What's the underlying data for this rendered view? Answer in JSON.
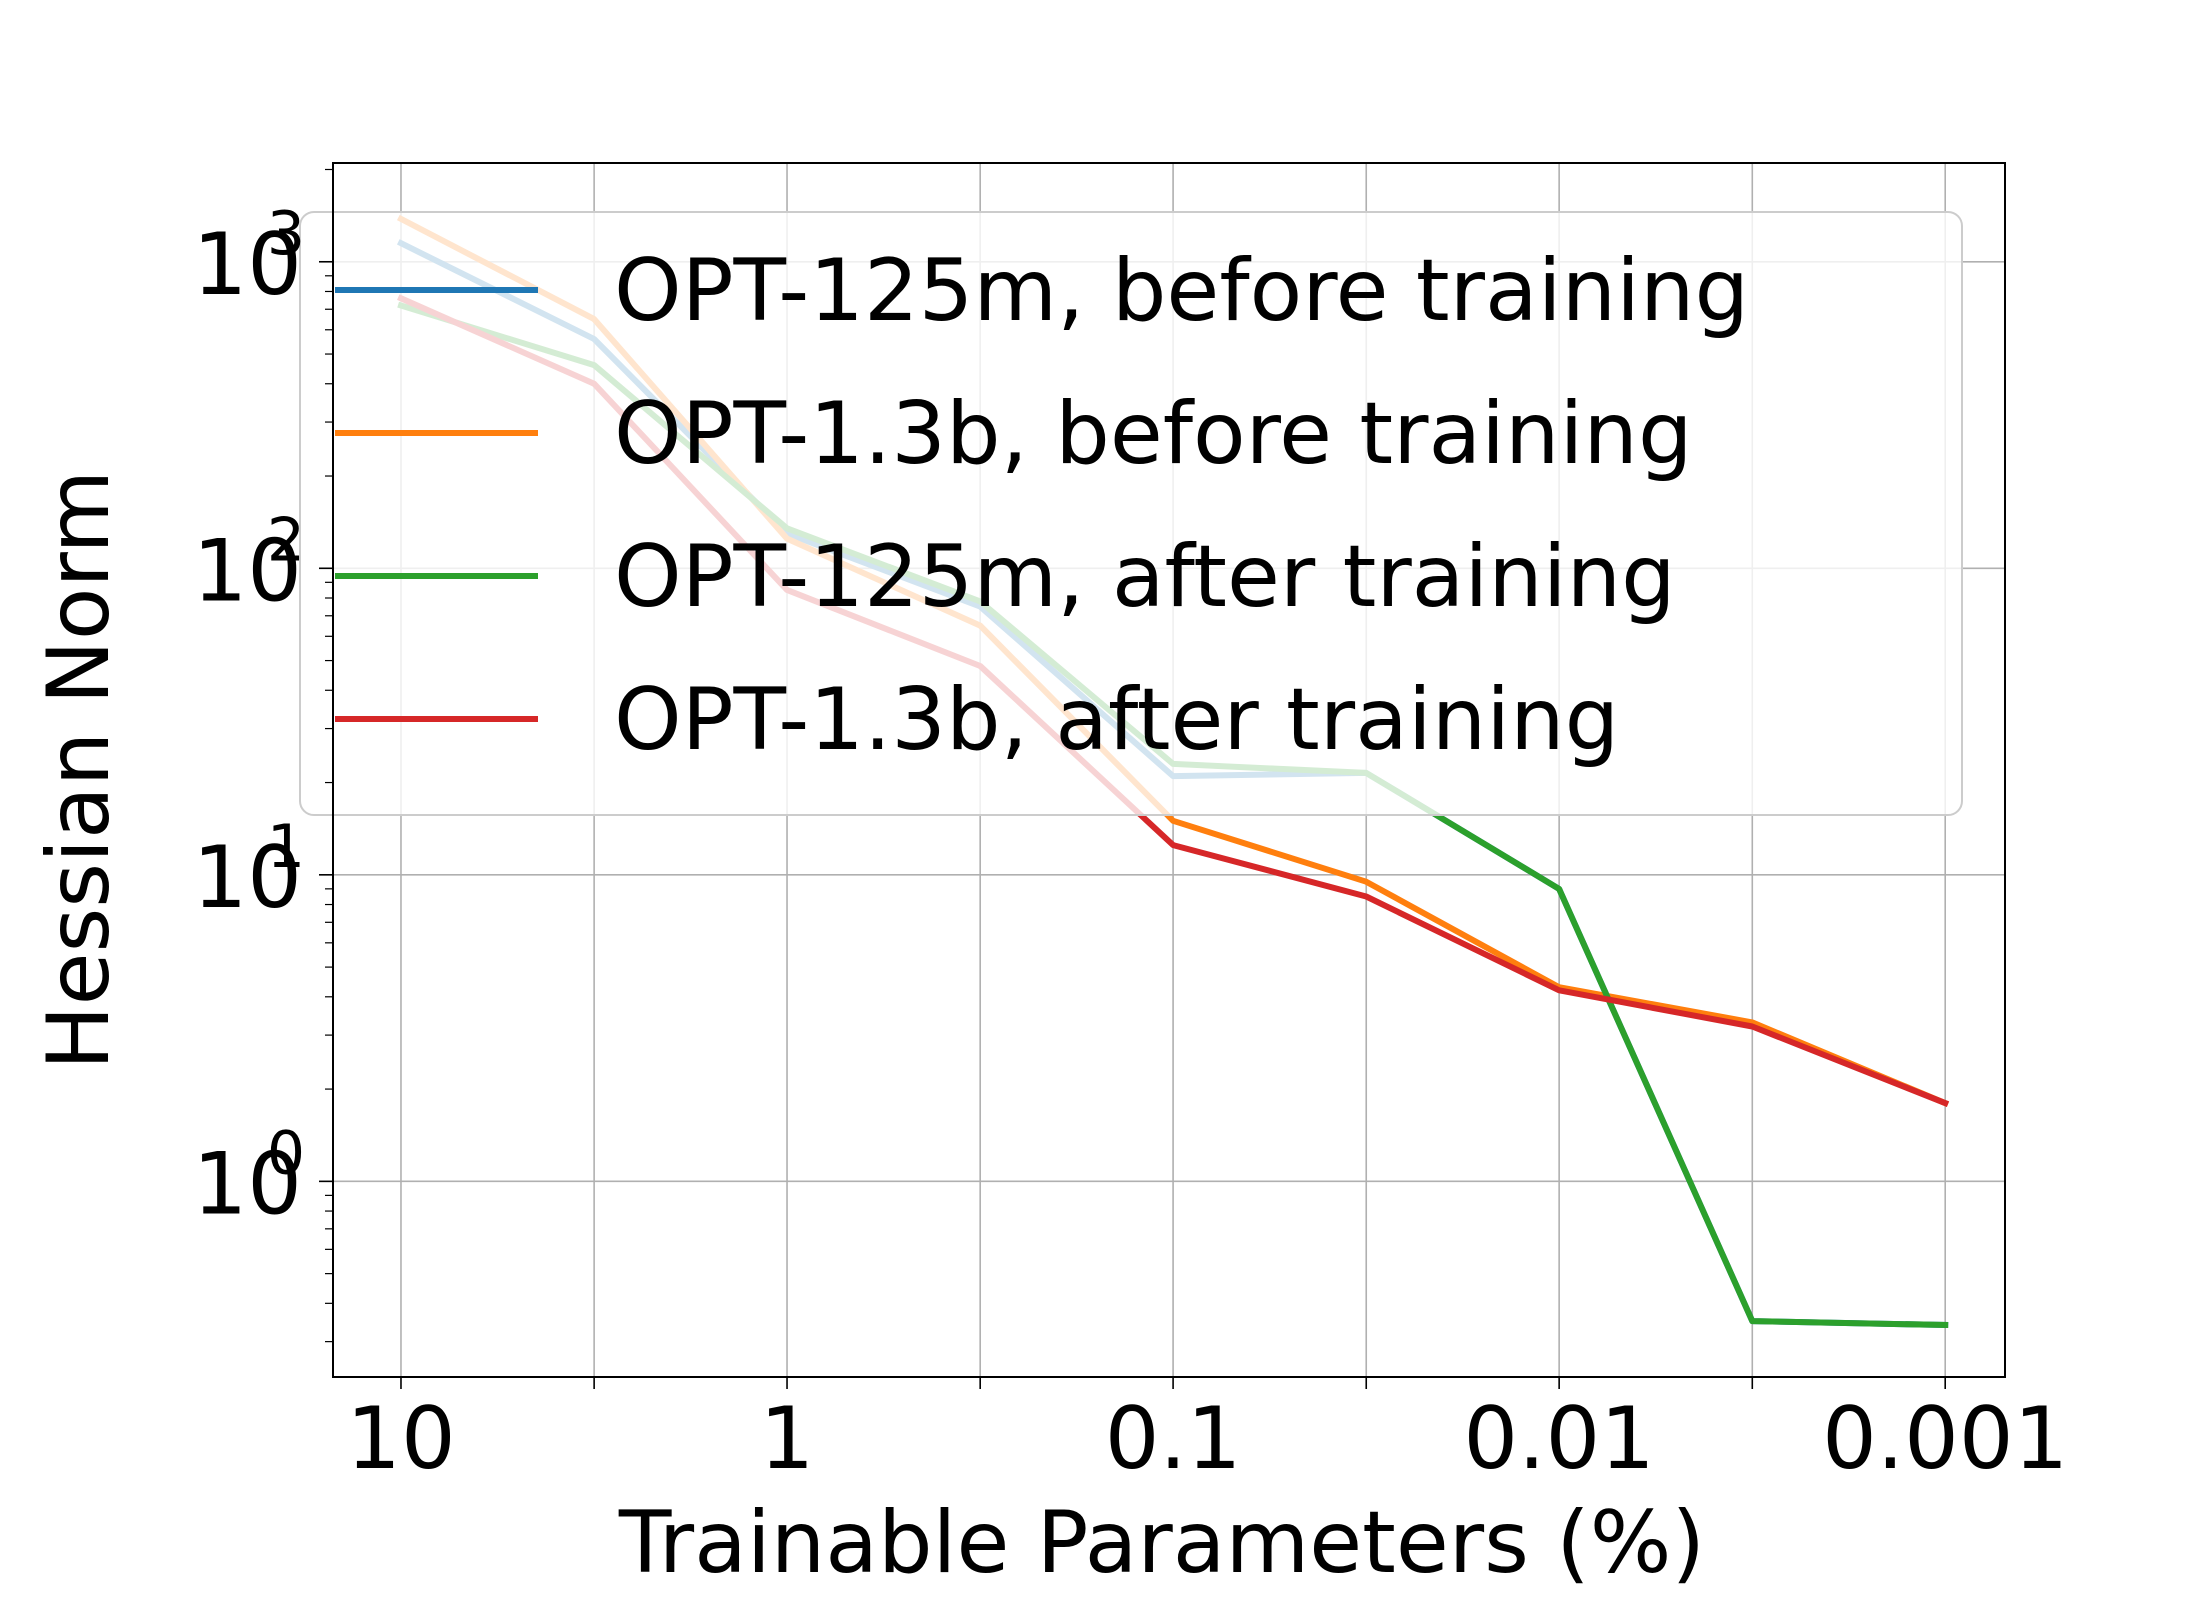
{
  "chart_data": {
    "type": "line",
    "title": "",
    "xlabel": "Trainable Parameters (%)",
    "ylabel": "Hessian Norm",
    "x_scale": "log",
    "x_reversed": true,
    "y_scale": "log",
    "x": [
      10,
      3.16,
      1,
      0.316,
      0.1,
      0.0316,
      0.01,
      0.00316,
      0.001
    ],
    "x_ticks": [
      {
        "value": 10,
        "label": "10"
      },
      {
        "value": 1,
        "label": "1"
      },
      {
        "value": 0.1,
        "label": "0.1"
      },
      {
        "value": 0.01,
        "label": "0.01"
      },
      {
        "value": 0.001,
        "label": "0.001"
      }
    ],
    "y_ticks": [
      {
        "value": 1,
        "base": "10",
        "exp": "0"
      },
      {
        "value": 10,
        "base": "10",
        "exp": "1"
      },
      {
        "value": 100,
        "base": "10",
        "exp": "2"
      },
      {
        "value": 1000,
        "base": "10",
        "exp": "3"
      }
    ],
    "xlim": [
      15,
      0.0007
    ],
    "ylim": [
      0.23,
      2100
    ],
    "grid": true,
    "legend_position": "upper right",
    "series": [
      {
        "name": "OPT-125m, before training",
        "color": "#1f77b4",
        "values": [
          1150,
          560,
          130,
          75,
          21,
          21.5,
          9,
          0.35,
          0.34
        ]
      },
      {
        "name": "OPT-1.3b, before training",
        "color": "#ff7f0e",
        "values": [
          1380,
          650,
          125,
          65,
          15,
          9.5,
          4.3,
          3.3,
          1.8
        ]
      },
      {
        "name": "OPT-125m, after training",
        "color": "#2ca02c",
        "values": [
          720,
          460,
          135,
          78,
          23,
          21.5,
          9,
          0.35,
          0.34
        ]
      },
      {
        "name": "OPT-1.3b, after training",
        "color": "#d62728",
        "values": [
          760,
          400,
          85,
          48,
          12.5,
          8.5,
          4.2,
          3.2,
          1.8
        ]
      }
    ]
  }
}
